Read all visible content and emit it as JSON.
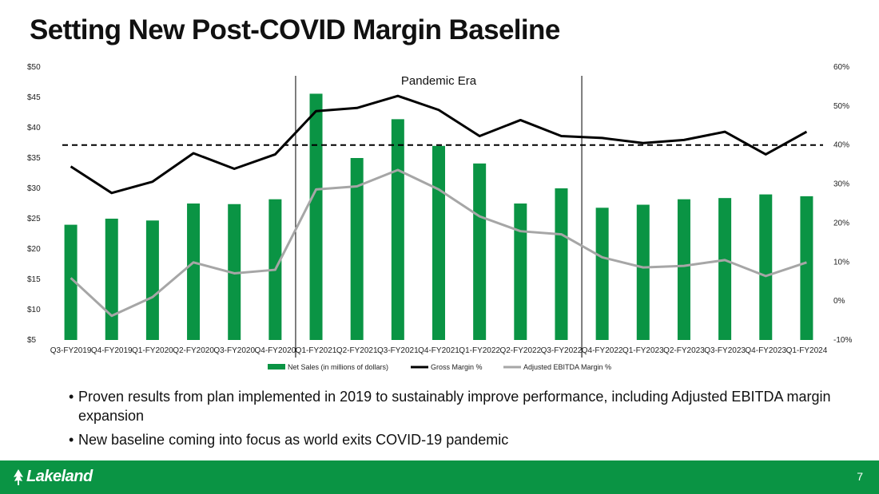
{
  "slide": {
    "title": "Setting New Post-COVID Margin Baseline",
    "page_number": "7",
    "logo_text": "Lakeland",
    "bullets": [
      "Proven results from plan implemented in 2019 to sustainably improve performance, including Adjusted EBITDA margin expansion",
      "New baseline coming into focus as world exits COVID-19 pandemic"
    ]
  },
  "chart_data": {
    "type": "bar",
    "categories": [
      "Q3-FY2019",
      "Q4-FY2019",
      "Q1-FY2020",
      "Q2-FY2020",
      "Q3-FY2020",
      "Q4-FY2020",
      "Q1-FY2021",
      "Q2-FY2021",
      "Q3-FY2021",
      "Q4-FY2021",
      "Q1-FY2022",
      "Q2-FY2022",
      "Q3-FY2022",
      "Q4-FY2022",
      "Q1-FY2023",
      "Q2-FY2023",
      "Q3-FY2023",
      "Q4-FY2023",
      "Q1-FY2024"
    ],
    "series": [
      {
        "name": "Net Sales (in millions of dollars)",
        "type": "bar",
        "axis": "left",
        "color": "#0a9444",
        "values": [
          24.0,
          25.0,
          24.7,
          27.5,
          27.4,
          28.2,
          45.6,
          35.0,
          41.4,
          37.0,
          34.1,
          27.5,
          30.0,
          26.8,
          27.3,
          28.2,
          28.4,
          29.0,
          28.7
        ]
      },
      {
        "name": "Gross Margin %",
        "type": "line",
        "axis": "right",
        "color": "#000000",
        "values": [
          34.5,
          27.7,
          30.6,
          37.9,
          33.9,
          37.6,
          48.7,
          49.5,
          52.6,
          49.0,
          42.3,
          46.4,
          42.3,
          41.8,
          40.5,
          41.3,
          43.4,
          37.6,
          43.4
        ]
      },
      {
        "name": "Adjusted EBITDA Margin %",
        "type": "line",
        "axis": "right",
        "color": "#a6a6a6",
        "values": [
          5.9,
          -3.8,
          1.0,
          9.9,
          7.1,
          8.0,
          28.6,
          29.4,
          33.6,
          28.6,
          21.7,
          17.9,
          17.1,
          11.2,
          8.6,
          9.0,
          10.5,
          6.4,
          9.9
        ]
      }
    ],
    "y_left": {
      "ticks": [
        "$5",
        "$10",
        "$15",
        "$20",
        "$25",
        "$30",
        "$35",
        "$40",
        "$45",
        "$50"
      ],
      "range": [
        5,
        50
      ]
    },
    "y_right": {
      "ticks": [
        "-10%",
        "0%",
        "10%",
        "20%",
        "30%",
        "40%",
        "50%",
        "60%"
      ],
      "range": [
        -10,
        60
      ]
    },
    "reference_line": {
      "axis": "right",
      "value": 40,
      "style": "dashed"
    },
    "annotation": {
      "text": "Pandemic Era",
      "from_category": "Q1-FY2021",
      "to_category": "Q3-FY2022"
    },
    "legend": {
      "placement": "bottom"
    },
    "grid": false
  }
}
